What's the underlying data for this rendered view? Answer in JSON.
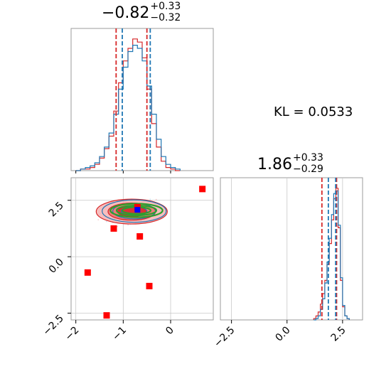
{
  "panel_titles": {
    "param1": {
      "main": "−0.82",
      "sup": "+0.33",
      "sub": "−0.32"
    },
    "param2": {
      "main": "1.86",
      "sup": "+0.33",
      "sub": "−0.29"
    }
  },
  "kl_label": "KL = 0.0533",
  "colors": {
    "red": "#d62728",
    "blue": "#1f77b4",
    "green": "#2ca02c",
    "marker_red": "#ff0000",
    "marker_blue": "#0000ff"
  },
  "chart_data": [
    {
      "type": "histogram",
      "panel": "top-left marginal",
      "xlim": [
        -2.1,
        0.9
      ],
      "series": [
        {
          "color": "red",
          "style": "step",
          "bins": [
            -2.0,
            -1.9,
            -1.8,
            -1.7,
            -1.6,
            -1.5,
            -1.4,
            -1.3,
            -1.2,
            -1.1,
            -1.0,
            -0.9,
            -0.8,
            -0.7,
            -0.6,
            -0.5,
            -0.4,
            -0.3,
            -0.2,
            -0.1,
            0.0,
            0.1
          ],
          "counts": [
            0,
            1,
            1,
            2,
            4,
            8,
            14,
            22,
            38,
            56,
            70,
            78,
            84,
            82,
            72,
            52,
            30,
            15,
            6,
            2,
            1,
            0
          ]
        },
        {
          "color": "blue",
          "style": "step",
          "bins": [
            -2.0,
            -1.9,
            -1.8,
            -1.7,
            -1.6,
            -1.5,
            -1.4,
            -1.3,
            -1.2,
            -1.1,
            -1.0,
            -0.9,
            -0.8,
            -0.7,
            -0.6,
            -0.5,
            -0.4,
            -0.3,
            -0.2,
            -0.1,
            0.0,
            0.1
          ],
          "counts": [
            0,
            1,
            2,
            3,
            5,
            9,
            15,
            24,
            36,
            52,
            66,
            76,
            80,
            78,
            70,
            54,
            36,
            20,
            9,
            4,
            2,
            1
          ]
        }
      ],
      "quantile_lines": {
        "red": [
          -1.15,
          -0.5
        ],
        "blue": [
          -1.02,
          -0.43
        ]
      }
    },
    {
      "type": "histogram",
      "panel": "bottom-right marginal",
      "xlim": [
        -3.0,
        3.4
      ],
      "x_ticks": [
        "−2.5",
        "0.0",
        "2.5"
      ],
      "series": [
        {
          "color": "red",
          "style": "step",
          "bins": [
            1.2,
            1.3,
            1.4,
            1.5,
            1.6,
            1.7,
            1.8,
            1.9,
            2.0,
            2.1,
            2.2,
            2.3,
            2.4,
            2.5,
            2.6,
            2.7
          ],
          "counts": [
            1,
            3,
            6,
            12,
            20,
            30,
            42,
            58,
            76,
            92,
            100,
            70,
            30,
            10,
            3,
            1
          ]
        },
        {
          "color": "blue",
          "style": "step",
          "bins": [
            1.2,
            1.3,
            1.4,
            1.5,
            1.6,
            1.7,
            1.8,
            1.9,
            2.0,
            2.1,
            2.2,
            2.3,
            2.4,
            2.5,
            2.6,
            2.7
          ],
          "counts": [
            0,
            1,
            3,
            8,
            16,
            28,
            44,
            62,
            80,
            96,
            98,
            72,
            32,
            11,
            3,
            1
          ]
        }
      ],
      "quantile_lines": {
        "red": [
          1.57,
          2.23
        ],
        "blue": [
          1.86,
          2.19
        ]
      }
    },
    {
      "type": "scatter",
      "panel": "bottom-left joint",
      "xlim": [
        -2.1,
        0.9
      ],
      "ylim": [
        -2.8,
        3.5
      ],
      "x_ticks": [
        "−2",
        "−1",
        "0"
      ],
      "y_ticks": [
        "−2.5",
        "0.0",
        "2.5"
      ],
      "red_markers": [
        {
          "x": 0.67,
          "y": 3.0
        },
        {
          "x": -1.2,
          "y": 1.25
        },
        {
          "x": -0.65,
          "y": 0.9
        },
        {
          "x": -1.75,
          "y": -0.7
        },
        {
          "x": -0.45,
          "y": -1.3
        },
        {
          "x": -1.35,
          "y": -2.6
        },
        {
          "x": -0.7,
          "y": 2.2
        }
      ],
      "blue_marker": {
        "x": -0.7,
        "y": 2.08
      },
      "contour_center": {
        "x": -0.82,
        "y": 2.0
      },
      "contour_spread": {
        "x": [
          0.75,
          0.5,
          0.3
        ],
        "y": [
          0.55,
          0.38,
          0.22
        ]
      },
      "green_contour_spread": {
        "x": [
          0.55,
          0.42,
          0.3
        ],
        "y": [
          0.3,
          0.22,
          0.15
        ]
      }
    }
  ]
}
